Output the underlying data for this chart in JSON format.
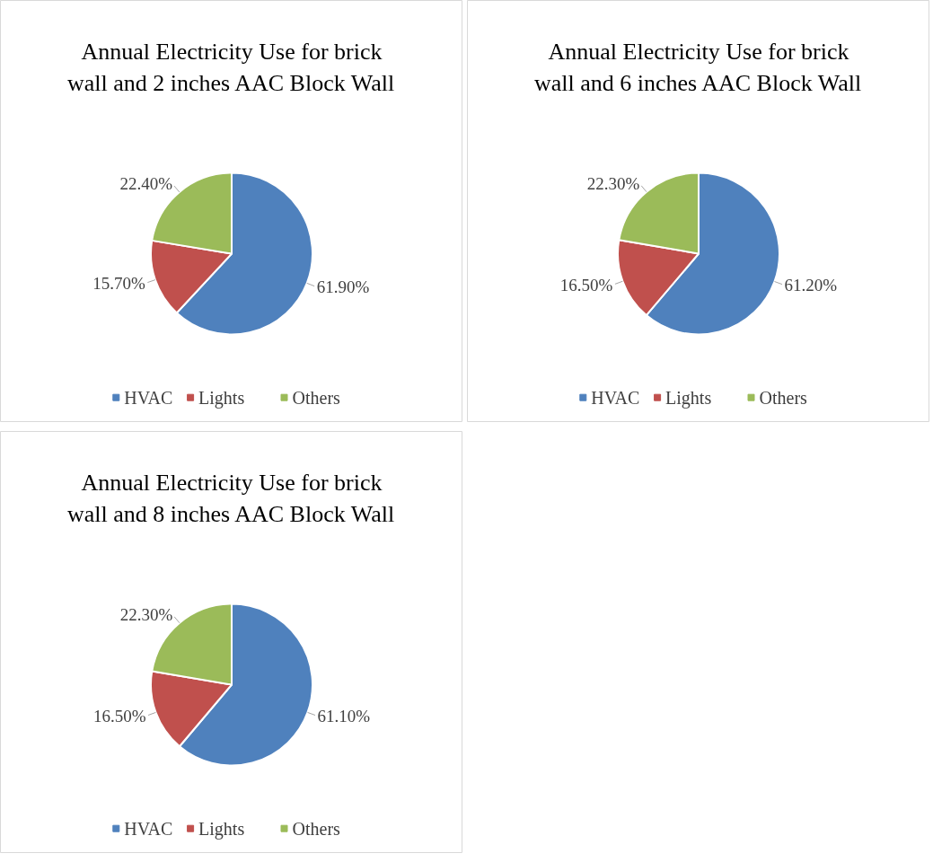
{
  "chart_data": [
    {
      "type": "pie",
      "title": "Annual Electricity Use for brick wall and 2 inches AAC Block Wall",
      "categories": [
        "HVAC",
        "Lights",
        "Others"
      ],
      "values": [
        61.9,
        15.7,
        22.4
      ],
      "colors": [
        "#4f81bd",
        "#c0504d",
        "#9bbb59"
      ],
      "value_labels": [
        "61.90%",
        "15.70%",
        "22.40%"
      ],
      "legend": "bottom"
    },
    {
      "type": "pie",
      "title": "Annual Electricity Use for brick wall and 6 inches AAC Block Wall",
      "categories": [
        "HVAC",
        "Lights",
        "Others"
      ],
      "values": [
        61.2,
        16.5,
        22.3
      ],
      "colors": [
        "#4f81bd",
        "#c0504d",
        "#9bbb59"
      ],
      "value_labels": [
        "61.20%",
        "16.50%",
        "22.30%"
      ],
      "legend": "bottom"
    },
    {
      "type": "pie",
      "title": "Annual Electricity Use for brick wall and 8 inches AAC Block Wall",
      "categories": [
        "HVAC",
        "Lights",
        "Others"
      ],
      "values": [
        61.1,
        16.5,
        22.3
      ],
      "colors": [
        "#4f81bd",
        "#c0504d",
        "#9bbb59"
      ],
      "value_labels": [
        "61.10%",
        "16.50%",
        "22.30%"
      ],
      "legend": "bottom"
    }
  ]
}
